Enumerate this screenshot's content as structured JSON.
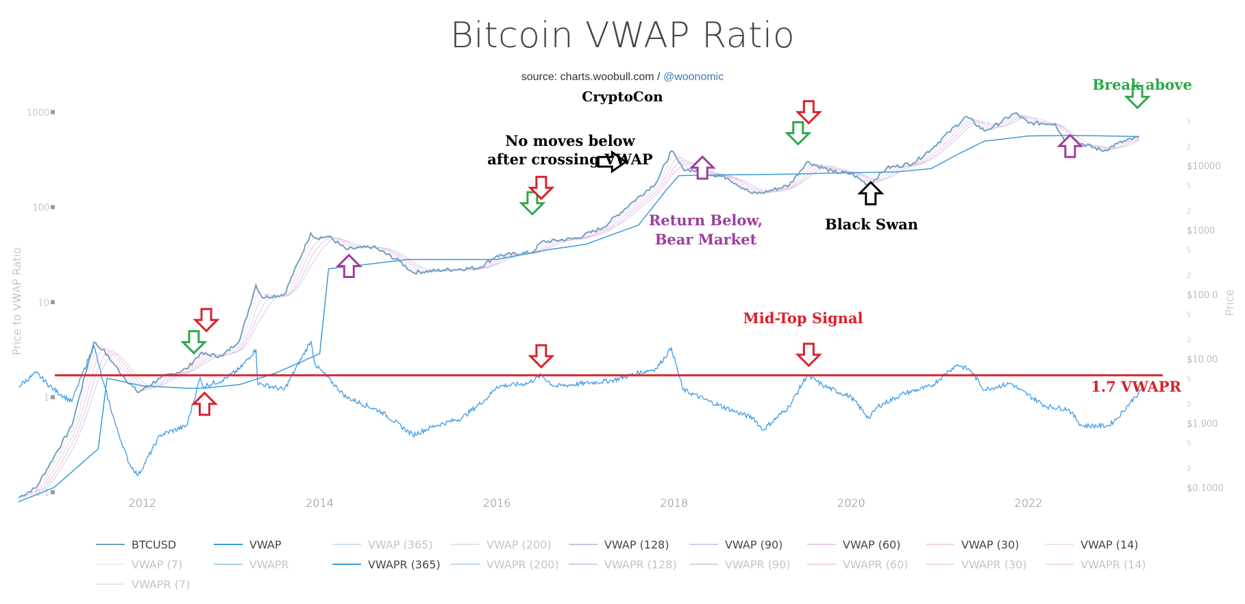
{
  "header": {
    "title": "Bitcoin VWAP Ratio",
    "source_prefix": "source: charts.woobull.com / ",
    "source_handle": "@woonomic",
    "author": "CryptoCon"
  },
  "chart_data": {
    "type": "line",
    "title": "Bitcoin VWAP Ratio",
    "ylabel_left": "Price to VWAP Ratio",
    "ylabel_right": "Price",
    "x_ticks": [
      "2012",
      "2014",
      "2016",
      "2018",
      "2020",
      "2022"
    ],
    "xlim": [
      2010.6,
      2023.35
    ],
    "left_axis": {
      "scale": "log",
      "ticks": [
        "1000",
        "100",
        "10",
        "1",
        "0.1"
      ],
      "ylim": [
        0.1,
        1000
      ]
    },
    "right_axis": {
      "scale": "log",
      "major_ticks": [
        "$10000",
        "$1000",
        "$100.0",
        "$10.00",
        "$1.000",
        "$0.1000"
      ],
      "minor_ticks": [
        "5",
        "2"
      ],
      "ylim": [
        0.1,
        60000
      ]
    },
    "grid": false,
    "legend_position": "bottom",
    "series": [
      {
        "name": "BTCUSD",
        "axis": "right",
        "color": "#6f9fbf",
        "x": [
          2010.6,
          2010.8,
          2011.0,
          2011.2,
          2011.45,
          2011.55,
          2011.8,
          2011.95,
          2012.2,
          2012.5,
          2012.65,
          2012.9,
          2013.1,
          2013.28,
          2013.35,
          2013.6,
          2013.9,
          2013.95,
          2014.1,
          2014.3,
          2014.6,
          2014.9,
          2015.05,
          2015.4,
          2015.8,
          2016.0,
          2016.4,
          2016.5,
          2016.9,
          2017.2,
          2017.5,
          2017.8,
          2017.97,
          2018.1,
          2018.3,
          2018.6,
          2018.88,
          2019.0,
          2019.3,
          2019.5,
          2019.8,
          2020.0,
          2020.2,
          2020.4,
          2020.7,
          2020.9,
          2021.1,
          2021.3,
          2021.5,
          2021.6,
          2021.85,
          2022.0,
          2022.3,
          2022.45,
          2022.6,
          2022.85,
          2023.0,
          2023.25
        ],
        "values": [
          0.07,
          0.1,
          0.3,
          0.9,
          18,
          14,
          5,
          3,
          5,
          7,
          12,
          11,
          20,
          140,
          90,
          100,
          900,
          750,
          800,
          500,
          550,
          330,
          220,
          240,
          260,
          400,
          450,
          650,
          750,
          1100,
          2500,
          5500,
          17000,
          9000,
          8000,
          6500,
          3700,
          3800,
          5000,
          11500,
          8000,
          7500,
          5000,
          9200,
          11000,
          18000,
          33000,
          58000,
          35000,
          40000,
          66000,
          46000,
          45000,
          20000,
          22000,
          17000,
          22000,
          28000
        ]
      },
      {
        "name": "VWAP",
        "axis": "right",
        "color": "#3a9ad9",
        "x": [
          2010.6,
          2011.0,
          2011.5,
          2011.6,
          2012.0,
          2012.5,
          2012.7,
          2013.1,
          2013.5,
          2014.0,
          2014.1,
          2015.0,
          2016.0,
          2016.6,
          2017.0,
          2017.6,
          2017.9,
          2018.05,
          2018.5,
          2019.0,
          2019.5,
          2020.0,
          2020.5,
          2020.9,
          2021.2,
          2021.5,
          2022.0,
          2022.5,
          2023.25
        ],
        "values": [
          0.06,
          0.1,
          0.4,
          5,
          3.8,
          3.5,
          3.5,
          4,
          6,
          12,
          250,
          350,
          350,
          500,
          600,
          1200,
          4000,
          7000,
          7200,
          7300,
          7500,
          7800,
          8000,
          9000,
          15000,
          24000,
          29000,
          29500,
          28500
        ]
      },
      {
        "name": "VWAPR",
        "axis": "left",
        "color": "#3a9ae6",
        "x": [
          2010.6,
          2010.8,
          2011.0,
          2011.2,
          2011.45,
          2011.55,
          2011.7,
          2011.85,
          2011.95,
          2012.2,
          2012.5,
          2012.65,
          2012.68,
          2012.9,
          2013.1,
          2013.28,
          2013.3,
          2013.6,
          2013.9,
          2013.95,
          2014.3,
          2014.7,
          2015.05,
          2015.3,
          2015.6,
          2015.9,
          2016.0,
          2016.35,
          2016.5,
          2016.65,
          2017.0,
          2017.3,
          2017.6,
          2017.8,
          2017.97,
          2018.1,
          2018.4,
          2018.7,
          2018.9,
          2019.0,
          2019.3,
          2019.5,
          2019.7,
          2020.0,
          2020.2,
          2020.3,
          2020.6,
          2020.9,
          2021.1,
          2021.2,
          2021.35,
          2021.5,
          2021.8,
          2021.9,
          2022.2,
          2022.45,
          2022.6,
          2022.9,
          2023.0,
          2023.2,
          2023.3
        ],
        "values": [
          1.3,
          1.8,
          1.2,
          0.9,
          3.5,
          1.5,
          0.5,
          0.2,
          0.15,
          0.4,
          0.5,
          1.6,
          1.3,
          1.5,
          2.0,
          3.2,
          1.4,
          1.2,
          3.9,
          2.2,
          1.0,
          0.7,
          0.4,
          0.5,
          0.6,
          1.0,
          1.3,
          1.4,
          1.7,
          1.3,
          1.4,
          1.5,
          1.8,
          2.0,
          3.3,
          1.2,
          0.9,
          0.7,
          0.6,
          0.45,
          0.8,
          1.7,
          1.3,
          1.0,
          0.6,
          0.8,
          1.1,
          1.3,
          1.9,
          2.2,
          1.9,
          1.2,
          1.4,
          1.2,
          0.8,
          0.75,
          0.5,
          0.5,
          0.6,
          1.0,
          1.25
        ]
      }
    ],
    "threshold": {
      "label": "1.7 VWAPR",
      "value": 1.7,
      "color": "#d9212a"
    },
    "annotations": [
      {
        "text": "No moves below",
        "color": "#000000"
      },
      {
        "text": "after crossing VWAP",
        "color": "#000000"
      },
      {
        "text": "Return Below,",
        "color": "#9b3f9e"
      },
      {
        "text": "Bear Market",
        "color": "#9b3f9e"
      },
      {
        "text": "Black Swan",
        "color": "#000000"
      },
      {
        "text": "Break above",
        "color": "#2ea84a"
      },
      {
        "text": "Mid-Top Signal",
        "color": "#d9212a"
      },
      {
        "text": "1.7 VWAPR",
        "color": "#d9212a"
      }
    ],
    "arrows": [
      {
        "kind": "down",
        "color": "#d9212a",
        "x": 2012.72,
        "axis_value_left": 6.5
      },
      {
        "kind": "down",
        "color": "#2ea84a",
        "x": 2012.58,
        "axis_value_left": 3.8
      },
      {
        "kind": "up",
        "color": "#d9212a",
        "x": 2012.7,
        "axis_value_left": 0.85
      },
      {
        "kind": "up",
        "color": "#9b3f9e",
        "x": 2014.33,
        "axis_value_left": 24
      },
      {
        "kind": "down",
        "color": "#2ea84a",
        "x": 2016.4,
        "axis_value_left": 110
      },
      {
        "kind": "down",
        "color": "#d9212a",
        "x": 2016.5,
        "axis_value_left": 160
      },
      {
        "kind": "right",
        "color": "#000000",
        "x": 2017.3,
        "axis_value_left": 300
      },
      {
        "kind": "down",
        "color": "#d9212a",
        "x": 2016.5,
        "axis_value_left": 2.7
      },
      {
        "kind": "up",
        "color": "#9b3f9e",
        "x": 2018.32,
        "axis_value_left": 260
      },
      {
        "kind": "down",
        "color": "#2ea84a",
        "x": 2019.4,
        "axis_value_left": 600
      },
      {
        "kind": "down",
        "color": "#d9212a",
        "x": 2019.52,
        "axis_value_left": 1000
      },
      {
        "kind": "down",
        "color": "#d9212a",
        "x": 2019.52,
        "axis_value_left": 2.8
      },
      {
        "kind": "up",
        "color": "#000000",
        "x": 2020.22,
        "axis_value_left": 140
      },
      {
        "kind": "up",
        "color": "#9b3f9e",
        "x": 2022.47,
        "axis_value_left": 440
      },
      {
        "kind": "down",
        "color": "#2ea84a",
        "x": 2023.23,
        "axis_value_left": 1450
      }
    ]
  },
  "legend": {
    "items": [
      {
        "label": "BTCUSD",
        "color": "#6f9fbf",
        "active": true
      },
      {
        "label": "VWAP",
        "color": "#3a9ad9",
        "active": true
      },
      {
        "label": "VWAP (365)",
        "color": "#cfe2f1",
        "active": false
      },
      {
        "label": "VWAP (200)",
        "color": "#dde3ef",
        "active": false
      },
      {
        "label": "VWAP (128)",
        "color": "#c9c2e4",
        "active": true
      },
      {
        "label": "VWAP (90)",
        "color": "#d8cce6",
        "active": true
      },
      {
        "label": "VWAP (60)",
        "color": "#eccdea",
        "active": true
      },
      {
        "label": "VWAP (30)",
        "color": "#f0d6ea",
        "active": true
      },
      {
        "label": "VWAP (14)",
        "color": "#f2e0ea",
        "active": true
      },
      {
        "label": "VWAP (7)",
        "color": "#f6e6ee",
        "active": false
      },
      {
        "label": "VWAPR",
        "color": "#a9cfe8",
        "active": false
      },
      {
        "label": "VWAPR (365)",
        "color": "#3a9ae6",
        "active": true
      },
      {
        "label": "VWAPR (200)",
        "color": "#bcd6ee",
        "active": false
      },
      {
        "label": "VWAPR (128)",
        "color": "#cfd0ea",
        "active": false
      },
      {
        "label": "VWAPR (90)",
        "color": "#d8d2ea",
        "active": false
      },
      {
        "label": "VWAPR (60)",
        "color": "#f0d2ea",
        "active": false
      },
      {
        "label": "VWAPR (30)",
        "color": "#f2d6ec",
        "active": false
      },
      {
        "label": "VWAPR (14)",
        "color": "#f4dde9",
        "active": false
      },
      {
        "label": "VWAPR (7)",
        "color": "#f6dfe8",
        "active": false
      }
    ]
  }
}
